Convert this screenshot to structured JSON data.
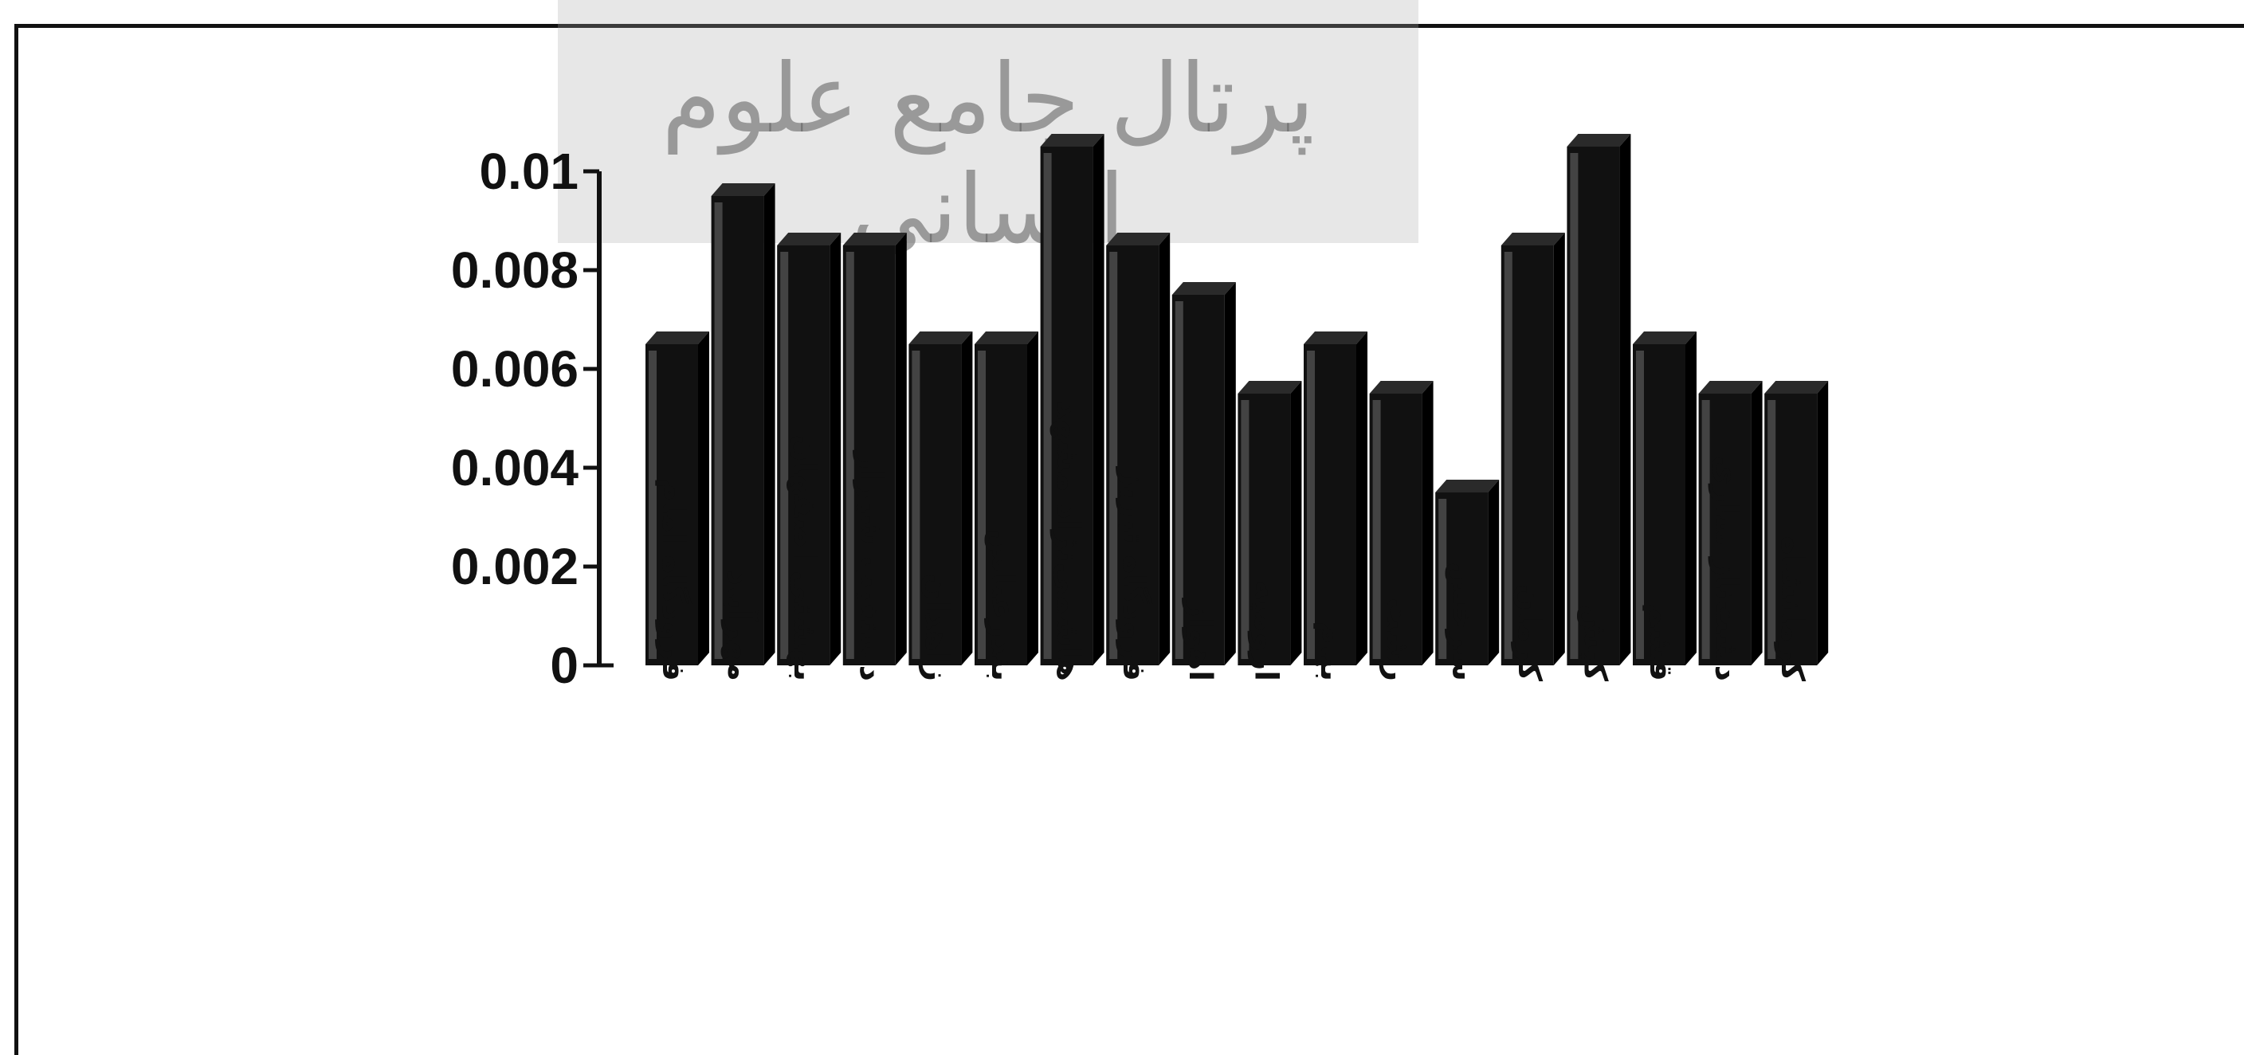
{
  "watermark": {
    "text": "پرتال جامع علوم انسانی"
  },
  "chart_data": {
    "type": "bar",
    "style": "3d",
    "bar_color": "#111111",
    "categories": [
      "فرودگاه امام",
      "مهرآباد",
      "بهشتی اصفهان",
      "دستغیب شیراز",
      "زاهدان",
      "بندرعباس",
      "هاشمی‌نژاد مشهد",
      "فرودگاه تبریز",
      "اهواز",
      "ارومیه",
      "بیام",
      "رشت",
      "سرخس",
      "کرمان",
      "کیش",
      "قشم",
      "دشت‌ناز ساری",
      "کرمانشاه"
    ],
    "values": [
      0.0065,
      0.0095,
      0.0085,
      0.0085,
      0.0065,
      0.0065,
      0.0105,
      0.0085,
      0.0075,
      0.0055,
      0.0065,
      0.0055,
      0.0035,
      0.0085,
      0.0105,
      0.0065,
      0.0055,
      0.0055
    ],
    "ylim": [
      0,
      0.01
    ],
    "yticks": [
      "0",
      "0.002",
      "0.004",
      "0.006",
      "0.008",
      "0.01"
    ],
    "ytick_values": [
      0,
      0.002,
      0.004,
      0.006,
      0.008,
      0.01
    ],
    "grid": false,
    "title": "",
    "xlabel": "",
    "ylabel": ""
  }
}
